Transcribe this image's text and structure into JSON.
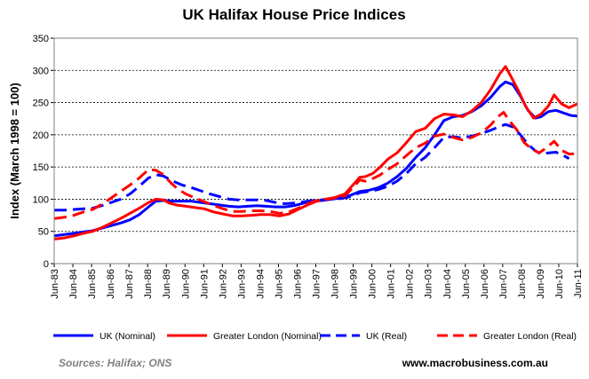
{
  "chart_data": {
    "type": "line",
    "title": "UK Halifax House Price Indices",
    "xlabel": "",
    "ylabel": "Index (March 1998 = 100)",
    "ylim": [
      0,
      350
    ],
    "yticks": [
      0,
      50,
      100,
      150,
      200,
      250,
      300,
      350
    ],
    "grid": true,
    "x_tick_labels": [
      "Jun-83",
      "Jun-84",
      "Jun-85",
      "Jun-86",
      "Jun-87",
      "Jun-88",
      "Jun-89",
      "Jun-90",
      "Jun-91",
      "Jun-92",
      "Jun-93",
      "Jun-94",
      "Jun-95",
      "Jun-96",
      "Jun-97",
      "Jun-98",
      "Jun-99",
      "Jun-00",
      "Jun-01",
      "Jun-02",
      "Jun-03",
      "Jun-04",
      "Jun-05",
      "Jun-06",
      "Jun-07",
      "Jun-08",
      "Jun-09",
      "Jun-10",
      "Jun-11"
    ],
    "x_range": [
      1983.45,
      2011.45
    ],
    "legend_position": "bottom",
    "series": [
      {
        "name": "UK (Nominal)",
        "color": "#0000ff",
        "style": "solid",
        "points": [
          [
            1983.45,
            43
          ],
          [
            1984.0,
            45
          ],
          [
            1984.5,
            47
          ],
          [
            1985.0,
            49
          ],
          [
            1985.5,
            51
          ],
          [
            1986.0,
            55
          ],
          [
            1986.5,
            59
          ],
          [
            1987.0,
            63
          ],
          [
            1987.5,
            68
          ],
          [
            1988.0,
            76
          ],
          [
            1988.5,
            88
          ],
          [
            1988.9,
            97
          ],
          [
            1989.3,
            98
          ],
          [
            1989.8,
            97
          ],
          [
            1990.3,
            97
          ],
          [
            1990.8,
            97
          ],
          [
            1991.3,
            95
          ],
          [
            1991.8,
            93
          ],
          [
            1992.3,
            91
          ],
          [
            1992.8,
            89
          ],
          [
            1993.3,
            88
          ],
          [
            1993.8,
            89
          ],
          [
            1994.3,
            90
          ],
          [
            1994.8,
            89
          ],
          [
            1995.3,
            88
          ],
          [
            1995.8,
            88
          ],
          [
            1996.3,
            90
          ],
          [
            1996.8,
            94
          ],
          [
            1997.3,
            97
          ],
          [
            1997.8,
            98
          ],
          [
            1998.3,
            100
          ],
          [
            1998.8,
            102
          ],
          [
            1999.3,
            106
          ],
          [
            1999.8,
            112
          ],
          [
            2000.3,
            114
          ],
          [
            2000.8,
            118
          ],
          [
            2001.3,
            125
          ],
          [
            2001.8,
            135
          ],
          [
            2002.3,
            148
          ],
          [
            2002.8,
            165
          ],
          [
            2003.3,
            180
          ],
          [
            2003.8,
            200
          ],
          [
            2004.3,
            222
          ],
          [
            2004.8,
            228
          ],
          [
            2005.3,
            230
          ],
          [
            2005.8,
            236
          ],
          [
            2006.3,
            245
          ],
          [
            2006.8,
            258
          ],
          [
            2007.3,
            275
          ],
          [
            2007.6,
            282
          ],
          [
            2008.0,
            278
          ],
          [
            2008.4,
            260
          ],
          [
            2008.8,
            238
          ],
          [
            2009.2,
            226
          ],
          [
            2009.5,
            228
          ],
          [
            2009.9,
            236
          ],
          [
            2010.3,
            238
          ],
          [
            2010.7,
            234
          ],
          [
            2011.1,
            230
          ],
          [
            2011.45,
            229
          ]
        ]
      },
      {
        "name": "Greater London (Nominal)",
        "color": "#ff0000",
        "style": "solid",
        "points": [
          [
            1983.45,
            38
          ],
          [
            1984.0,
            40
          ],
          [
            1984.5,
            43
          ],
          [
            1985.0,
            47
          ],
          [
            1985.5,
            50
          ],
          [
            1986.0,
            56
          ],
          [
            1986.5,
            63
          ],
          [
            1987.0,
            70
          ],
          [
            1987.5,
            78
          ],
          [
            1988.0,
            86
          ],
          [
            1988.5,
            95
          ],
          [
            1988.9,
            100
          ],
          [
            1989.3,
            99
          ],
          [
            1989.6,
            94
          ],
          [
            1990.0,
            91
          ],
          [
            1990.5,
            89
          ],
          [
            1991.0,
            87
          ],
          [
            1991.5,
            85
          ],
          [
            1992.0,
            80
          ],
          [
            1992.5,
            77
          ],
          [
            1993.0,
            74
          ],
          [
            1993.5,
            74
          ],
          [
            1994.0,
            75
          ],
          [
            1994.5,
            76
          ],
          [
            1995.0,
            76
          ],
          [
            1995.5,
            74
          ],
          [
            1996.0,
            77
          ],
          [
            1996.5,
            84
          ],
          [
            1997.0,
            91
          ],
          [
            1997.5,
            97
          ],
          [
            1998.0,
            100
          ],
          [
            1998.5,
            103
          ],
          [
            1999.0,
            108
          ],
          [
            1999.5,
            124
          ],
          [
            1999.8,
            134
          ],
          [
            2000.1,
            135
          ],
          [
            2000.5,
            140
          ],
          [
            2000.9,
            150
          ],
          [
            2001.3,
            162
          ],
          [
            2001.8,
            172
          ],
          [
            2002.3,
            188
          ],
          [
            2002.8,
            205
          ],
          [
            2003.3,
            210
          ],
          [
            2003.8,
            225
          ],
          [
            2004.3,
            232
          ],
          [
            2004.8,
            231
          ],
          [
            2005.3,
            228
          ],
          [
            2005.8,
            237
          ],
          [
            2006.3,
            250
          ],
          [
            2006.8,
            270
          ],
          [
            2007.3,
            295
          ],
          [
            2007.6,
            306
          ],
          [
            2007.9,
            290
          ],
          [
            2008.3,
            268
          ],
          [
            2008.7,
            243
          ],
          [
            2009.1,
            226
          ],
          [
            2009.5,
            232
          ],
          [
            2009.9,
            245
          ],
          [
            2010.2,
            262
          ],
          [
            2010.6,
            248
          ],
          [
            2011.0,
            242
          ],
          [
            2011.45,
            248
          ]
        ]
      },
      {
        "name": "UK (Real)",
        "color": "#0000ff",
        "style": "dashed",
        "points": [
          [
            1983.45,
            83
          ],
          [
            1984.0,
            83
          ],
          [
            1984.5,
            84
          ],
          [
            1985.0,
            85
          ],
          [
            1985.5,
            86
          ],
          [
            1986.0,
            90
          ],
          [
            1986.5,
            95
          ],
          [
            1987.0,
            100
          ],
          [
            1987.5,
            108
          ],
          [
            1988.0,
            120
          ],
          [
            1988.5,
            133
          ],
          [
            1988.9,
            138
          ],
          [
            1989.3,
            136
          ],
          [
            1989.8,
            128
          ],
          [
            1990.3,
            122
          ],
          [
            1990.8,
            118
          ],
          [
            1991.3,
            113
          ],
          [
            1991.8,
            108
          ],
          [
            1992.3,
            104
          ],
          [
            1992.8,
            100
          ],
          [
            1993.3,
            99
          ],
          [
            1993.8,
            99
          ],
          [
            1994.3,
            99
          ],
          [
            1994.8,
            98
          ],
          [
            1995.3,
            95
          ],
          [
            1995.8,
            93
          ],
          [
            1996.3,
            94
          ],
          [
            1996.8,
            96
          ],
          [
            1997.3,
            98
          ],
          [
            1997.8,
            99
          ],
          [
            1998.3,
            100
          ],
          [
            1998.8,
            101
          ],
          [
            1999.3,
            104
          ],
          [
            1999.8,
            110
          ],
          [
            2000.3,
            112
          ],
          [
            2000.8,
            115
          ],
          [
            2001.3,
            120
          ],
          [
            2001.8,
            128
          ],
          [
            2002.3,
            140
          ],
          [
            2002.8,
            155
          ],
          [
            2003.3,
            165
          ],
          [
            2003.8,
            180
          ],
          [
            2004.3,
            196
          ],
          [
            2004.8,
            197
          ],
          [
            2005.3,
            195
          ],
          [
            2005.8,
            198
          ],
          [
            2006.3,
            202
          ],
          [
            2006.8,
            207
          ],
          [
            2007.3,
            213
          ],
          [
            2007.6,
            216
          ],
          [
            2008.0,
            212
          ],
          [
            2008.4,
            200
          ],
          [
            2008.8,
            185
          ],
          [
            2009.2,
            175
          ],
          [
            2009.5,
            170
          ],
          [
            2009.9,
            172
          ],
          [
            2010.3,
            173
          ],
          [
            2010.7,
            168
          ],
          [
            2011.0,
            163
          ]
        ]
      },
      {
        "name": "Greater London (Real)",
        "color": "#ff0000",
        "style": "dashed",
        "points": [
          [
            1983.45,
            70
          ],
          [
            1984.0,
            72
          ],
          [
            1984.5,
            75
          ],
          [
            1985.0,
            80
          ],
          [
            1985.5,
            84
          ],
          [
            1986.0,
            92
          ],
          [
            1986.5,
            102
          ],
          [
            1987.0,
            112
          ],
          [
            1987.5,
            122
          ],
          [
            1988.0,
            133
          ],
          [
            1988.5,
            146
          ],
          [
            1988.9,
            145
          ],
          [
            1989.3,
            138
          ],
          [
            1989.7,
            125
          ],
          [
            1990.1,
            115
          ],
          [
            1990.5,
            108
          ],
          [
            1991.0,
            102
          ],
          [
            1991.5,
            96
          ],
          [
            1992.0,
            90
          ],
          [
            1992.5,
            85
          ],
          [
            1993.0,
            81
          ],
          [
            1993.5,
            81
          ],
          [
            1994.0,
            82
          ],
          [
            1994.5,
            82
          ],
          [
            1995.0,
            81
          ],
          [
            1995.5,
            78
          ],
          [
            1996.0,
            80
          ],
          [
            1996.5,
            86
          ],
          [
            1997.0,
            93
          ],
          [
            1997.5,
            98
          ],
          [
            1998.0,
            100
          ],
          [
            1998.5,
            102
          ],
          [
            1999.0,
            105
          ],
          [
            1999.5,
            120
          ],
          [
            1999.8,
            130
          ],
          [
            2000.1,
            128
          ],
          [
            2000.5,
            132
          ],
          [
            2000.9,
            138
          ],
          [
            2001.3,
            146
          ],
          [
            2001.8,
            155
          ],
          [
            2002.3,
            168
          ],
          [
            2002.8,
            180
          ],
          [
            2003.3,
            187
          ],
          [
            2003.8,
            198
          ],
          [
            2004.3,
            201
          ],
          [
            2004.8,
            196
          ],
          [
            2005.3,
            192
          ],
          [
            2005.8,
            196
          ],
          [
            2006.3,
            203
          ],
          [
            2006.8,
            215
          ],
          [
            2007.2,
            228
          ],
          [
            2007.5,
            235
          ],
          [
            2007.8,
            222
          ],
          [
            2008.2,
            208
          ],
          [
            2008.6,
            188
          ],
          [
            2009.0,
            178
          ],
          [
            2009.4,
            172
          ],
          [
            2009.8,
            180
          ],
          [
            2010.2,
            190
          ],
          [
            2010.6,
            176
          ],
          [
            2011.0,
            170
          ],
          [
            2011.45,
            171
          ]
        ]
      }
    ],
    "sources": "Sources:  Halifax;  ONS",
    "website": "www.macrobusiness.com.au"
  }
}
